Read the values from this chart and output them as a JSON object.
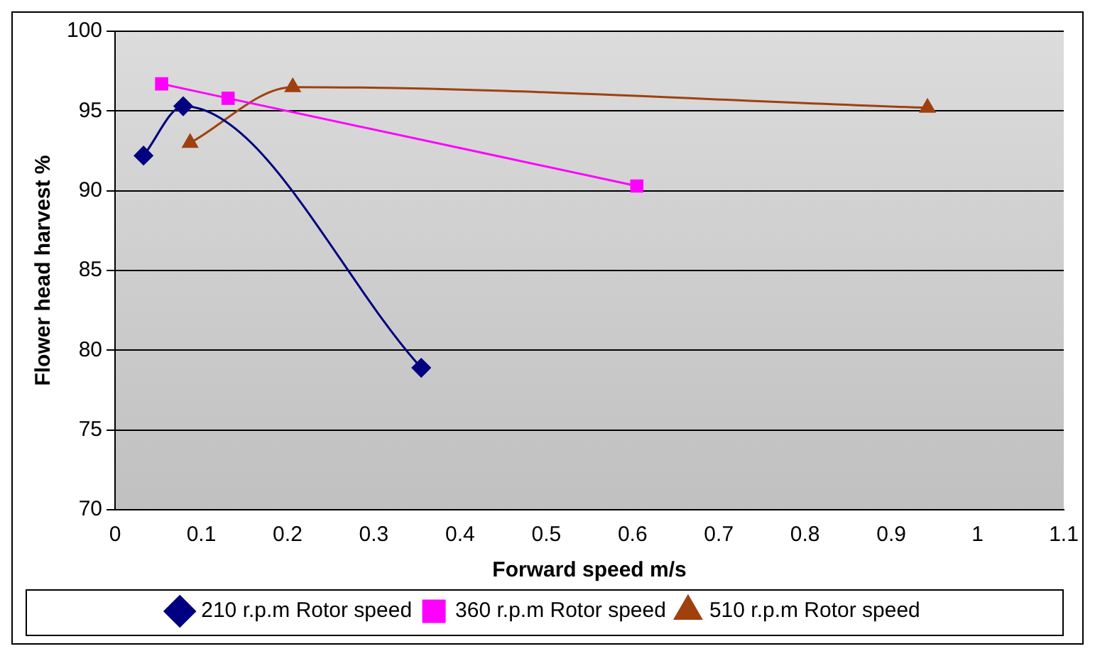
{
  "chart_data": {
    "type": "line",
    "xlabel": "Forward speed m/s",
    "ylabel": "Flower head harvest %",
    "xlim": [
      0,
      1.1
    ],
    "xticks": [
      0,
      0.1,
      0.2,
      0.3,
      0.4,
      0.5,
      0.6,
      0.7,
      0.8,
      0.9,
      1,
      1.1
    ],
    "ylim": [
      70,
      100
    ],
    "yticks": [
      70,
      75,
      80,
      85,
      90,
      95,
      100
    ],
    "grid": "y",
    "legend": "bottom",
    "series": [
      {
        "name": "210 r.p.m Rotor speed",
        "color": "#000080",
        "marker": "diamond",
        "x": [
          0.033,
          0.079,
          0.355
        ],
        "values": [
          92.2,
          95.3,
          78.9
        ]
      },
      {
        "name": "360 r.p.m Rotor speed",
        "color": "#ff00ff",
        "marker": "square",
        "x": [
          0.054,
          0.131,
          0.605
        ],
        "values": [
          96.7,
          95.8,
          90.3
        ]
      },
      {
        "name": "510 r.p.m Rotor speed",
        "color": "#a0400f",
        "marker": "triangle",
        "x": [
          0.087,
          0.206,
          0.942
        ],
        "values": [
          93.0,
          96.5,
          95.2
        ]
      }
    ]
  }
}
